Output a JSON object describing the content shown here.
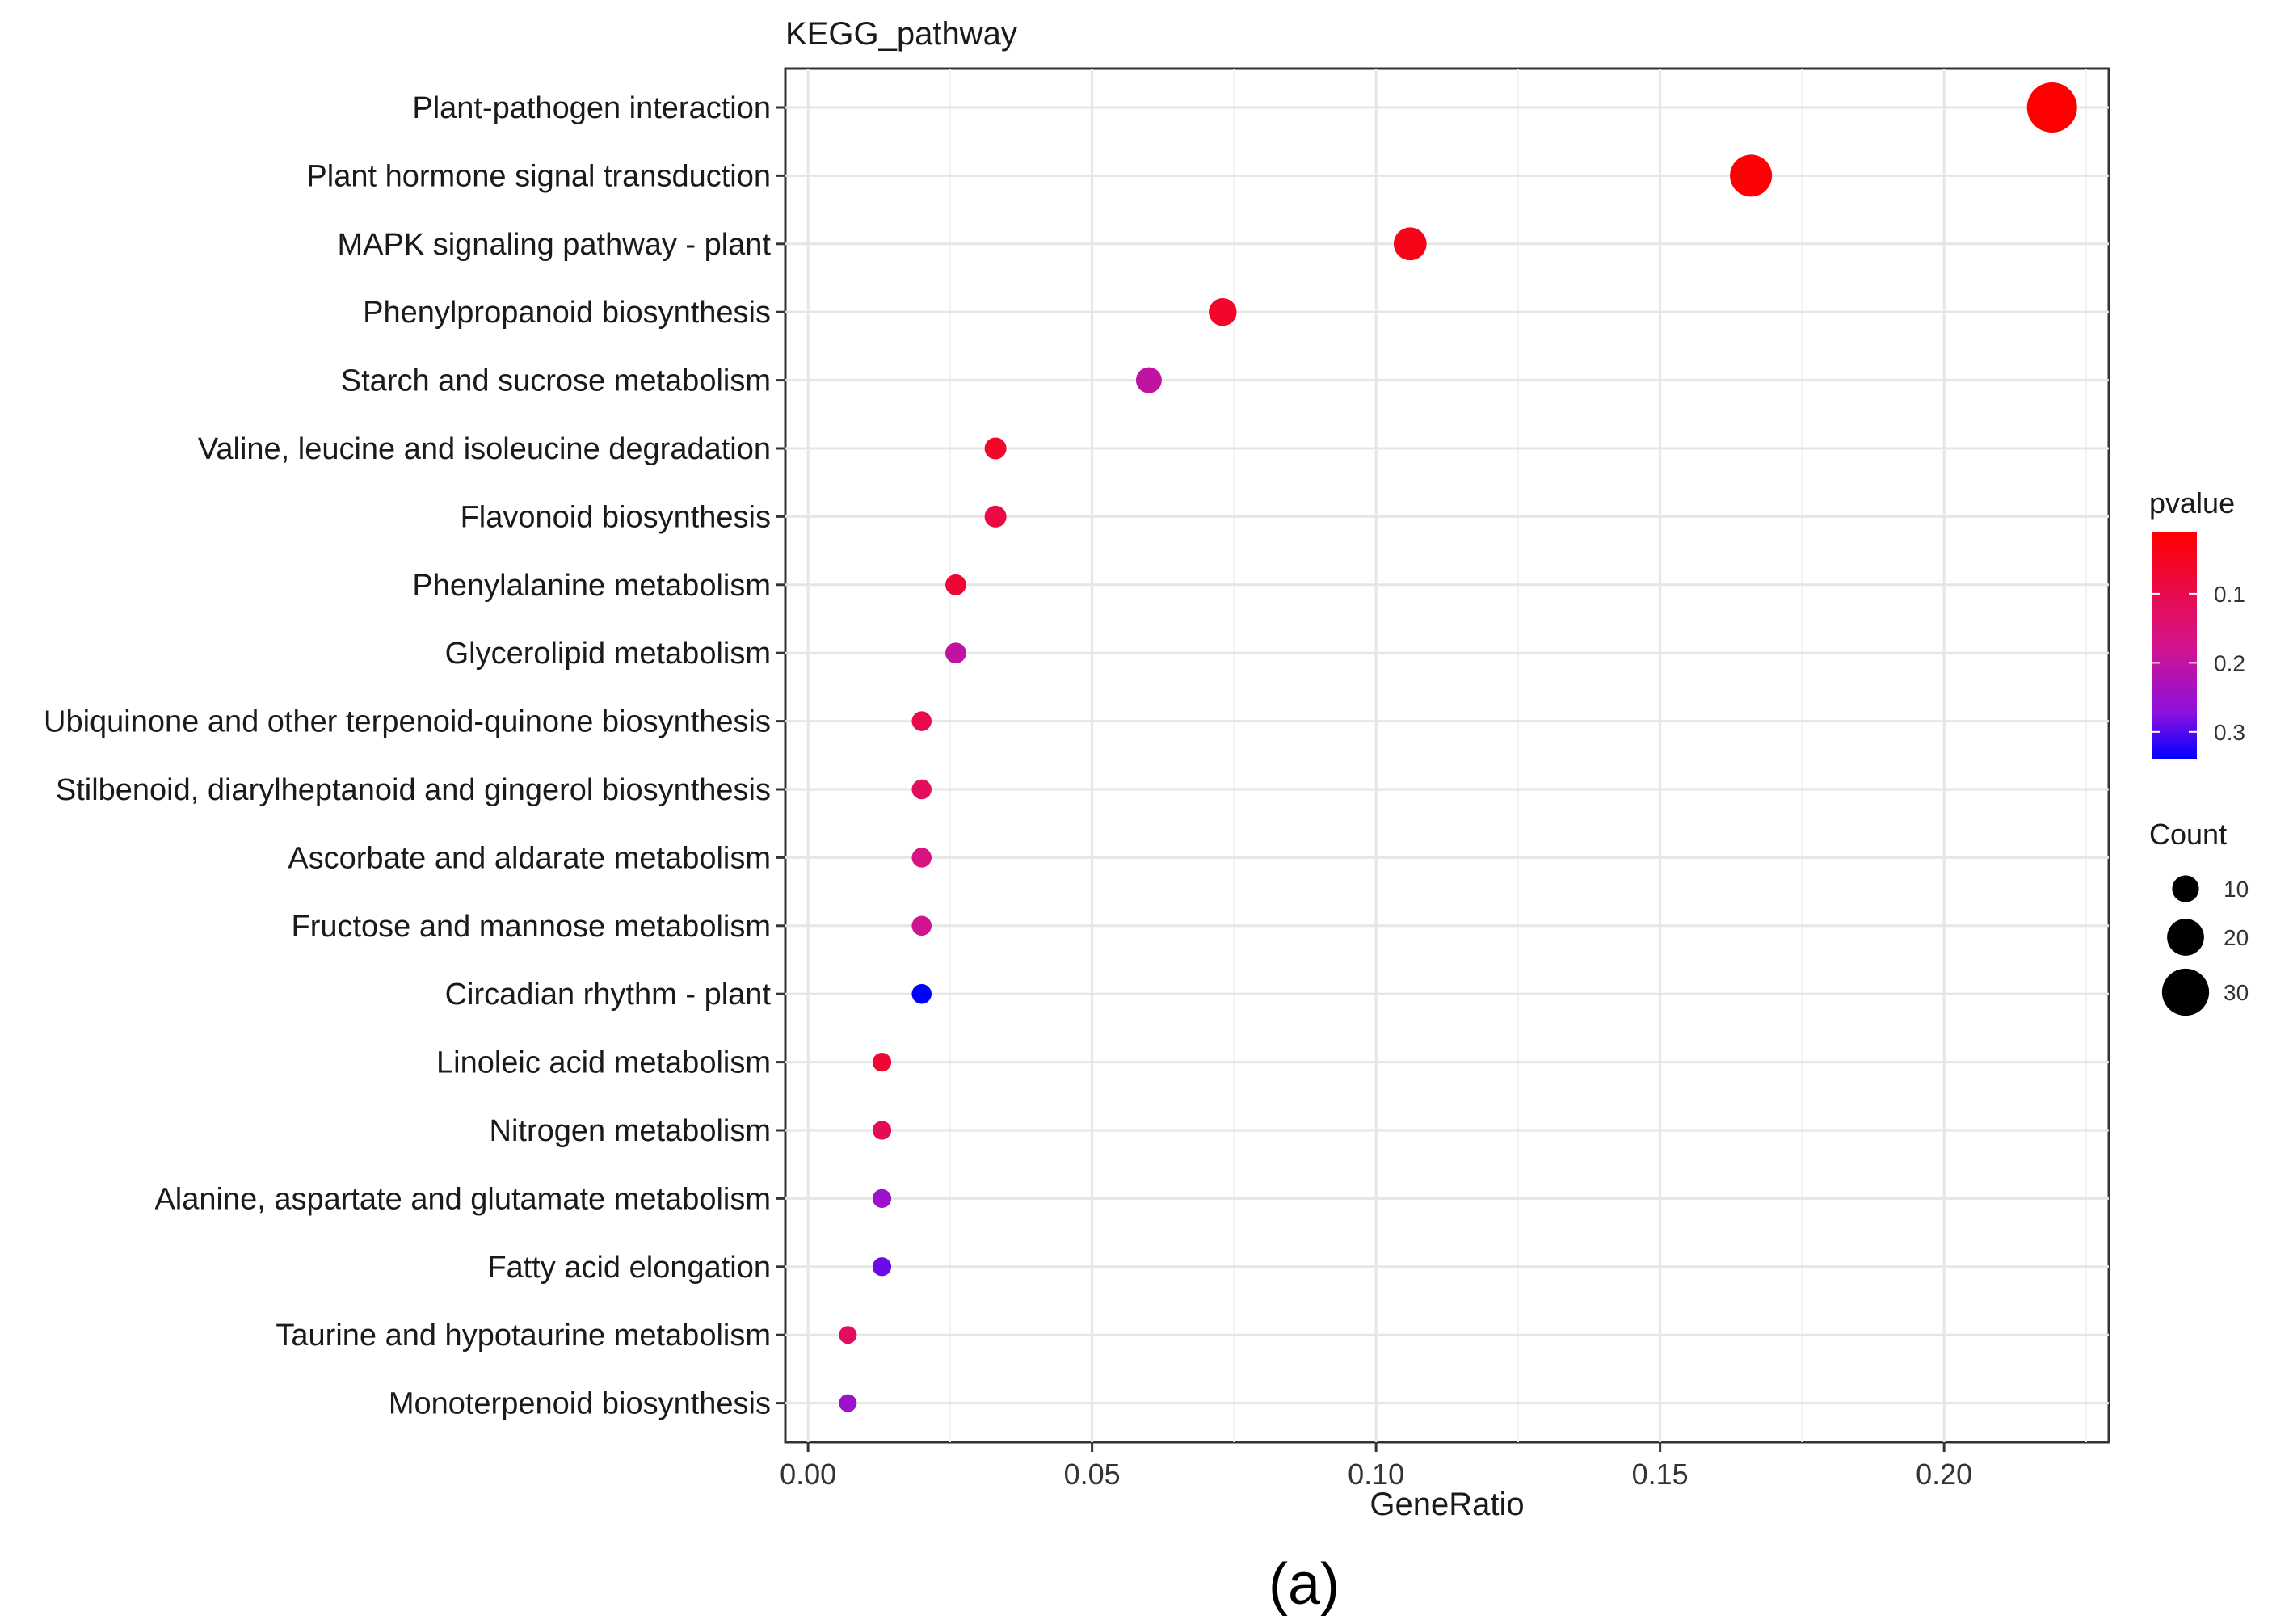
{
  "chart_data": {
    "type": "scatter",
    "title": "KEGG_pathway",
    "xlabel": "GeneRatio",
    "ylabel": "",
    "xlim": [
      -0.004,
      0.229
    ],
    "xticks": [
      0.0,
      0.05,
      0.1,
      0.15,
      0.2
    ],
    "xtick_labels": [
      "0.00",
      "0.05",
      "0.10",
      "0.15",
      "0.20"
    ],
    "grid": true,
    "categories": [
      "Plant-pathogen interaction",
      "Plant hormone signal transduction",
      "MAPK signaling pathway - plant",
      "Phenylpropanoid biosynthesis",
      "Starch and sucrose metabolism",
      "Valine, leucine and isoleucine degradation",
      "Flavonoid biosynthesis",
      "Phenylalanine metabolism",
      "Glycerolipid metabolism",
      "Ubiquinone and other terpenoid-quinone biosynthesis",
      "Stilbenoid, diarylheptanoid and gingerol biosynthesis",
      "Ascorbate and aldarate metabolism",
      "Fructose and mannose metabolism",
      "Circadian rhythm - plant",
      "Linoleic acid metabolism",
      "Nitrogen metabolism",
      "Alanine, aspartate and glutamate metabolism",
      "Fatty acid elongation",
      "Taurine and hypotaurine metabolism",
      "Monoterpenoid biosynthesis"
    ],
    "gene_ratio": [
      0.219,
      0.166,
      0.106,
      0.073,
      0.06,
      0.033,
      0.033,
      0.026,
      0.026,
      0.02,
      0.02,
      0.02,
      0.02,
      0.02,
      0.013,
      0.013,
      0.013,
      0.013,
      0.007,
      0.007
    ],
    "count": [
      33,
      25,
      16,
      11,
      9,
      5,
      5,
      4,
      4,
      3,
      3,
      3,
      3,
      3,
      2,
      2,
      2,
      2,
      1,
      1
    ],
    "pvalue": [
      0.01,
      0.015,
      0.04,
      0.06,
      0.2,
      0.06,
      0.09,
      0.07,
      0.2,
      0.1,
      0.12,
      0.16,
      0.18,
      0.34,
      0.07,
      0.11,
      0.25,
      0.29,
      0.12,
      0.25
    ],
    "color_legend": {
      "title": "pvalue",
      "range": [
        0.01,
        0.34
      ],
      "ticks": [
        0.1,
        0.2,
        0.3
      ],
      "tick_labels": [
        "0.1",
        "0.2",
        "0.3"
      ],
      "low_color": "#ff0000",
      "high_color": "#0000ff"
    },
    "size_legend": {
      "title": "Count",
      "values": [
        10,
        20,
        30
      ],
      "labels": [
        "10",
        "20",
        "30"
      ]
    },
    "legend_position": "right"
  },
  "caption": "(a)"
}
